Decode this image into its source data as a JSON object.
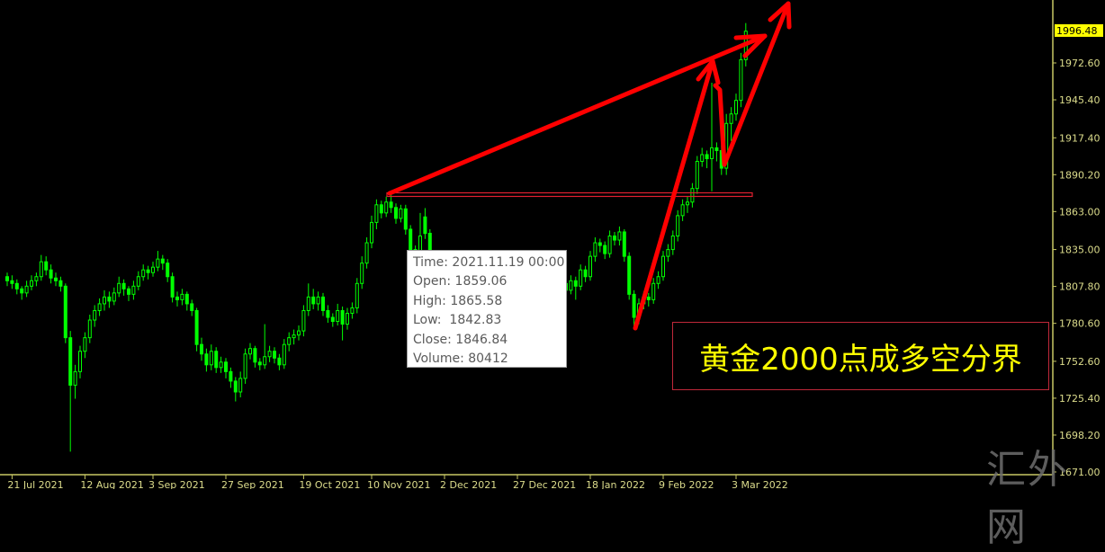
{
  "chart_data": {
    "type": "candlestick",
    "title": "",
    "ylim": [
      1669,
      2019
    ],
    "y_ticks": [
      "1972.60",
      "1945.40",
      "1917.40",
      "1890.20",
      "1863.00",
      "1835.00",
      "1807.80",
      "1780.60",
      "1752.60",
      "1725.40",
      "1698.20",
      "1671.00"
    ],
    "current_price": "1996.48",
    "x_ticks": [
      {
        "index": 1,
        "label": "21 Jul 2021"
      },
      {
        "index": 16,
        "label": "12 Aug 2021"
      },
      {
        "index": 30,
        "label": "3 Sep 2021"
      },
      {
        "index": 45,
        "label": "27 Sep 2021"
      },
      {
        "index": 61,
        "label": "19 Oct 2021"
      },
      {
        "index": 75,
        "label": "10 Nov 2021"
      },
      {
        "index": 90,
        "label": "2 Dec 2021"
      },
      {
        "index": 105,
        "label": "27 Dec 2021"
      },
      {
        "index": 120,
        "label": "18 Jan 2022"
      },
      {
        "index": 135,
        "label": "9 Feb 2022"
      },
      {
        "index": 150,
        "label": "3 Mar 2022"
      }
    ],
    "ohlc": [
      [
        1815,
        1818,
        1808,
        1812
      ],
      [
        1812,
        1816,
        1806,
        1810
      ],
      [
        1810,
        1813,
        1802,
        1806
      ],
      [
        1806,
        1808,
        1798,
        1803
      ],
      [
        1803,
        1812,
        1800,
        1808
      ],
      [
        1808,
        1816,
        1805,
        1812
      ],
      [
        1812,
        1818,
        1808,
        1815
      ],
      [
        1815,
        1831,
        1812,
        1826
      ],
      [
        1826,
        1830,
        1816,
        1820
      ],
      [
        1820,
        1824,
        1810,
        1814
      ],
      [
        1814,
        1818,
        1808,
        1812
      ],
      [
        1812,
        1815,
        1804,
        1808
      ],
      [
        1808,
        1810,
        1766,
        1770
      ],
      [
        1770,
        1775,
        1686,
        1735
      ],
      [
        1735,
        1750,
        1725,
        1745
      ],
      [
        1745,
        1764,
        1740,
        1760
      ],
      [
        1760,
        1774,
        1755,
        1770
      ],
      [
        1770,
        1787,
        1766,
        1783
      ],
      [
        1783,
        1794,
        1778,
        1790
      ],
      [
        1790,
        1799,
        1786,
        1795
      ],
      [
        1795,
        1805,
        1790,
        1800
      ],
      [
        1800,
        1804,
        1792,
        1797
      ],
      [
        1797,
        1807,
        1794,
        1803
      ],
      [
        1803,
        1815,
        1800,
        1810
      ],
      [
        1810,
        1813,
        1801,
        1806
      ],
      [
        1806,
        1808,
        1797,
        1802
      ],
      [
        1802,
        1812,
        1798,
        1808
      ],
      [
        1808,
        1819,
        1805,
        1815
      ],
      [
        1815,
        1824,
        1812,
        1820
      ],
      [
        1820,
        1823,
        1813,
        1818
      ],
      [
        1818,
        1826,
        1815,
        1822
      ],
      [
        1822,
        1834,
        1819,
        1828
      ],
      [
        1828,
        1831,
        1820,
        1825
      ],
      [
        1825,
        1828,
        1811,
        1815
      ],
      [
        1815,
        1818,
        1796,
        1800
      ],
      [
        1800,
        1804,
        1793,
        1798
      ],
      [
        1798,
        1806,
        1794,
        1802
      ],
      [
        1802,
        1804,
        1790,
        1795
      ],
      [
        1795,
        1798,
        1786,
        1790
      ],
      [
        1790,
        1792,
        1760,
        1765
      ],
      [
        1765,
        1770,
        1753,
        1758
      ],
      [
        1758,
        1762,
        1745,
        1750
      ],
      [
        1750,
        1765,
        1746,
        1760
      ],
      [
        1760,
        1763,
        1744,
        1748
      ],
      [
        1748,
        1756,
        1744,
        1752
      ],
      [
        1752,
        1755,
        1740,
        1745
      ],
      [
        1745,
        1748,
        1733,
        1738
      ],
      [
        1738,
        1741,
        1723,
        1730
      ],
      [
        1730,
        1745,
        1726,
        1740
      ],
      [
        1740,
        1762,
        1736,
        1758
      ],
      [
        1758,
        1766,
        1754,
        1762
      ],
      [
        1762,
        1764,
        1748,
        1752
      ],
      [
        1752,
        1755,
        1746,
        1750
      ],
      [
        1750,
        1780,
        1747,
        1756
      ],
      [
        1756,
        1764,
        1752,
        1760
      ],
      [
        1760,
        1763,
        1751,
        1755
      ],
      [
        1755,
        1758,
        1746,
        1750
      ],
      [
        1750,
        1769,
        1747,
        1765
      ],
      [
        1765,
        1774,
        1760,
        1770
      ],
      [
        1770,
        1776,
        1765,
        1772
      ],
      [
        1772,
        1779,
        1768,
        1775
      ],
      [
        1775,
        1794,
        1771,
        1790
      ],
      [
        1790,
        1810,
        1786,
        1800
      ],
      [
        1800,
        1806,
        1791,
        1795
      ],
      [
        1795,
        1804,
        1790,
        1800
      ],
      [
        1800,
        1803,
        1786,
        1790
      ],
      [
        1790,
        1794,
        1781,
        1785
      ],
      [
        1785,
        1788,
        1778,
        1782
      ],
      [
        1782,
        1795,
        1779,
        1790
      ],
      [
        1790,
        1793,
        1768,
        1780
      ],
      [
        1780,
        1792,
        1776,
        1788
      ],
      [
        1788,
        1796,
        1784,
        1792
      ],
      [
        1792,
        1814,
        1788,
        1810
      ],
      [
        1810,
        1830,
        1806,
        1825
      ],
      [
        1825,
        1844,
        1821,
        1840
      ],
      [
        1840,
        1860,
        1836,
        1855
      ],
      [
        1855,
        1872,
        1850,
        1868
      ],
      [
        1868,
        1871,
        1858,
        1862
      ],
      [
        1862,
        1874,
        1859,
        1870
      ],
      [
        1870,
        1877,
        1862,
        1866
      ],
      [
        1866,
        1869,
        1854,
        1858
      ],
      [
        1858,
        1868,
        1855,
        1865
      ],
      [
        1865,
        1868,
        1846,
        1850
      ],
      [
        1850,
        1853,
        1831,
        1835
      ],
      [
        1835,
        1838,
        1826,
        1830
      ],
      [
        1830,
        1862,
        1827,
        1845
      ],
      [
        1859.06,
        1865.58,
        1842.83,
        1846.84
      ],
      [
        1847,
        1850,
        1816,
        1820
      ],
      [
        1820,
        1823,
        1801,
        1805
      ],
      [
        1805,
        1808,
        1791,
        1795
      ],
      [
        1795,
        1798,
        1781,
        1785
      ],
      [
        1785,
        1794,
        1782,
        1790
      ],
      [
        1790,
        1792,
        1778,
        1782
      ],
      [
        1782,
        1789,
        1779,
        1785
      ],
      [
        1785,
        1787,
        1774,
        1778
      ],
      [
        1778,
        1794,
        1775,
        1790
      ],
      [
        1790,
        1799,
        1786,
        1795
      ],
      [
        1795,
        1797,
        1784,
        1788
      ],
      [
        1788,
        1790,
        1776,
        1780
      ],
      [
        1780,
        1789,
        1777,
        1785
      ],
      [
        1785,
        1799,
        1782,
        1795
      ],
      [
        1795,
        1804,
        1791,
        1800
      ],
      [
        1800,
        1803,
        1794,
        1798
      ],
      [
        1798,
        1809,
        1795,
        1805
      ],
      [
        1805,
        1807,
        1791,
        1795
      ],
      [
        1795,
        1806,
        1792,
        1802
      ],
      [
        1802,
        1809,
        1799,
        1805
      ],
      [
        1805,
        1812,
        1802,
        1808
      ],
      [
        1808,
        1819,
        1805,
        1815
      ],
      [
        1815,
        1824,
        1812,
        1820
      ],
      [
        1820,
        1823,
        1814,
        1818
      ],
      [
        1818,
        1821,
        1808,
        1812
      ],
      [
        1812,
        1815,
        1801,
        1805
      ],
      [
        1805,
        1822,
        1802,
        1818
      ],
      [
        1818,
        1821,
        1806,
        1810
      ],
      [
        1810,
        1813,
        1800,
        1805
      ],
      [
        1805,
        1816,
        1802,
        1812
      ],
      [
        1812,
        1815,
        1798,
        1808
      ],
      [
        1808,
        1824,
        1805,
        1820
      ],
      [
        1820,
        1823,
        1811,
        1815
      ],
      [
        1815,
        1834,
        1812,
        1830
      ],
      [
        1830,
        1844,
        1826,
        1840
      ],
      [
        1840,
        1843,
        1833,
        1838
      ],
      [
        1838,
        1841,
        1828,
        1832
      ],
      [
        1832,
        1849,
        1829,
        1845
      ],
      [
        1845,
        1848,
        1838,
        1842
      ],
      [
        1842,
        1852,
        1838,
        1848
      ],
      [
        1848,
        1850,
        1826,
        1830
      ],
      [
        1830,
        1833,
        1798,
        1802
      ],
      [
        1802,
        1805,
        1778,
        1785
      ],
      [
        1785,
        1799,
        1780,
        1795
      ],
      [
        1795,
        1804,
        1791,
        1800
      ],
      [
        1800,
        1803,
        1793,
        1798
      ],
      [
        1798,
        1814,
        1795,
        1810
      ],
      [
        1810,
        1819,
        1806,
        1815
      ],
      [
        1815,
        1834,
        1812,
        1830
      ],
      [
        1830,
        1839,
        1826,
        1835
      ],
      [
        1835,
        1849,
        1831,
        1845
      ],
      [
        1845,
        1864,
        1841,
        1860
      ],
      [
        1860,
        1872,
        1856,
        1868
      ],
      [
        1868,
        1874,
        1862,
        1870
      ],
      [
        1870,
        1884,
        1866,
        1880
      ],
      [
        1880,
        1904,
        1876,
        1900
      ],
      [
        1900,
        1910,
        1896,
        1905
      ],
      [
        1905,
        1908,
        1895,
        1902
      ],
      [
        1902,
        1958,
        1878,
        1910
      ],
      [
        1910,
        1914,
        1900,
        1908
      ],
      [
        1908,
        1912,
        1890,
        1895
      ],
      [
        1895,
        1935,
        1890,
        1928
      ],
      [
        1928,
        1940,
        1915,
        1935
      ],
      [
        1935,
        1950,
        1930,
        1945
      ],
      [
        1945,
        1980,
        1940,
        1975
      ],
      [
        1975,
        2002,
        1970,
        1996
      ]
    ],
    "colors": {
      "background": "#000000",
      "candle": "#00ff00",
      "axis": "#c8c864",
      "axis_text": "#dcdc8c",
      "current_price_bg": "#ffff00",
      "annotation": "#ff0000"
    },
    "horizontal_level": 1875.5,
    "grid": false
  },
  "tooltip": {
    "time": "Time: 2021.11.19 00:00",
    "open": "Open: 1859.06",
    "high": "High: 1865.58",
    "low": "Low:  1842.83",
    "close": "Close: 1846.84",
    "volume": "Volume: 80412"
  },
  "annotation_text": "黄金2000点成多空分界",
  "watermark": "汇外网"
}
